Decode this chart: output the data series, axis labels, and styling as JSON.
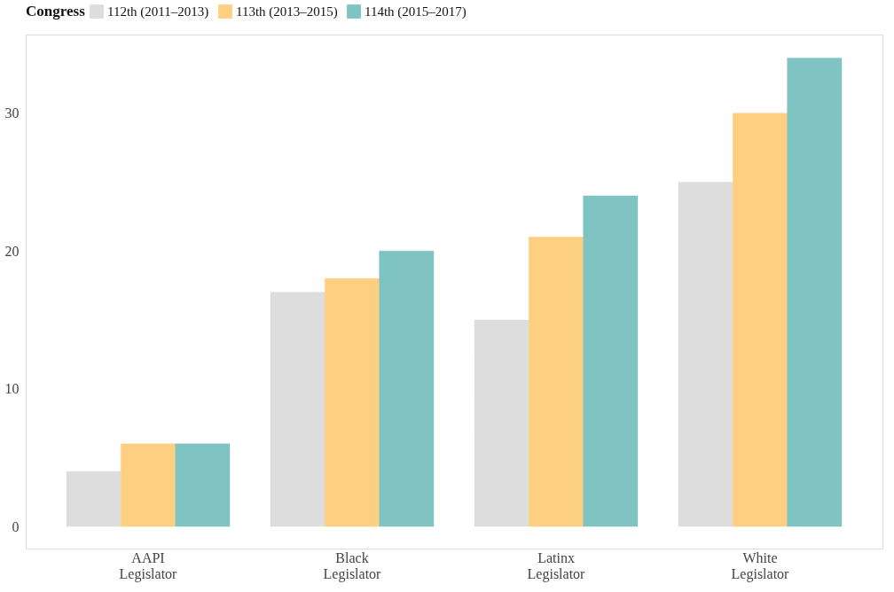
{
  "chart_data": {
    "type": "bar",
    "legend_title": "Congress",
    "legend": "top",
    "categories": [
      "AAPI Legislator",
      "Black Legislator",
      "Latinx Legislator",
      "White Legislator"
    ],
    "series": [
      {
        "name": "112th (2011–2013)",
        "color": "#dddddd",
        "values": [
          4,
          17,
          15,
          25
        ]
      },
      {
        "name": "113th (2013–2015)",
        "color": "#fdd081",
        "values": [
          6,
          18,
          21,
          30
        ]
      },
      {
        "name": "114th (2015–2017)",
        "color": "#7fc3c2",
        "values": [
          6,
          20,
          24,
          34
        ]
      }
    ],
    "ylim": [
      -1.6,
      35.7
    ],
    "yticks": [
      0,
      10,
      20,
      30
    ],
    "grid": false
  }
}
